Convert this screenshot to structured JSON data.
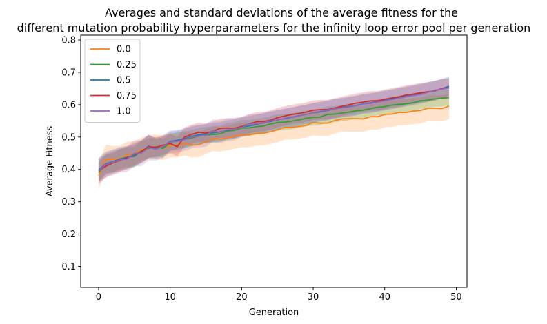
{
  "chart_data": {
    "type": "line",
    "title_line1": "Averages and standard deviations of the average fitness for the",
    "title_line2": "different mutation probability hyperparameters for the infinity loop error pool per generation",
    "xlabel": "Generation",
    "ylabel": "Average Fitness",
    "xlim": [
      -2.5,
      51.5
    ],
    "ylim": [
      0.035,
      0.815
    ],
    "xticks": [
      0,
      10,
      20,
      30,
      40,
      50
    ],
    "yticks": [
      0.1,
      0.2,
      0.3,
      0.4,
      0.5,
      0.6,
      0.7,
      0.8
    ],
    "xtick_labels": [
      "0",
      "10",
      "20",
      "30",
      "40",
      "50"
    ],
    "ytick_labels": [
      "0.1",
      "0.2",
      "0.3",
      "0.4",
      "0.5",
      "0.6",
      "0.7",
      "0.8"
    ],
    "grid": false,
    "legend_position": "top-left",
    "x": [
      0,
      1,
      2,
      3,
      4,
      5,
      6,
      7,
      8,
      9,
      10,
      11,
      12,
      13,
      14,
      15,
      16,
      17,
      18,
      19,
      20,
      21,
      22,
      23,
      24,
      25,
      26,
      27,
      28,
      29,
      30,
      31,
      32,
      33,
      34,
      35,
      36,
      37,
      38,
      39,
      40,
      41,
      42,
      43,
      44,
      45,
      46,
      47,
      48,
      49
    ],
    "series": [
      {
        "name": "0.0",
        "color": "#ff7f0e",
        "mean": [
          0.38,
          0.432,
          0.432,
          0.433,
          0.445,
          0.447,
          0.46,
          0.469,
          0.469,
          0.467,
          0.475,
          0.475,
          0.481,
          0.475,
          0.476,
          0.485,
          0.495,
          0.493,
          0.497,
          0.502,
          0.506,
          0.507,
          0.511,
          0.512,
          0.516,
          0.522,
          0.53,
          0.53,
          0.533,
          0.536,
          0.545,
          0.543,
          0.543,
          0.551,
          0.556,
          0.557,
          0.557,
          0.556,
          0.563,
          0.563,
          0.57,
          0.571,
          0.576,
          0.576,
          0.58,
          0.582,
          0.589,
          0.589,
          0.588,
          0.596
        ],
        "std": [
          0.04,
          0.045,
          0.04,
          0.04,
          0.04,
          0.04,
          0.038,
          0.038,
          0.038,
          0.038,
          0.038,
          0.038,
          0.038,
          0.038,
          0.038,
          0.038,
          0.038,
          0.038,
          0.038,
          0.038,
          0.038,
          0.038,
          0.038,
          0.038,
          0.038,
          0.038,
          0.038,
          0.038,
          0.038,
          0.038,
          0.04,
          0.04,
          0.04,
          0.04,
          0.04,
          0.04,
          0.04,
          0.04,
          0.04,
          0.04,
          0.04,
          0.04,
          0.04,
          0.04,
          0.04,
          0.04,
          0.04,
          0.04,
          0.04,
          0.04
        ]
      },
      {
        "name": "0.25",
        "color": "#2ca02c",
        "mean": [
          0.39,
          0.418,
          0.42,
          0.432,
          0.438,
          0.44,
          0.457,
          0.465,
          0.47,
          0.465,
          0.483,
          0.49,
          0.492,
          0.497,
          0.503,
          0.506,
          0.508,
          0.51,
          0.518,
          0.521,
          0.528,
          0.528,
          0.532,
          0.534,
          0.54,
          0.545,
          0.546,
          0.549,
          0.553,
          0.558,
          0.561,
          0.562,
          0.57,
          0.571,
          0.574,
          0.577,
          0.581,
          0.583,
          0.588,
          0.592,
          0.594,
          0.599,
          0.601,
          0.603,
          0.606,
          0.612,
          0.614,
          0.618,
          0.62,
          0.622
        ],
        "std": [
          0.03,
          0.03,
          0.03,
          0.03,
          0.03,
          0.03,
          0.03,
          0.03,
          0.03,
          0.03,
          0.025,
          0.025,
          0.025,
          0.025,
          0.025,
          0.025,
          0.025,
          0.025,
          0.025,
          0.025,
          0.025,
          0.025,
          0.025,
          0.025,
          0.025,
          0.025,
          0.025,
          0.025,
          0.025,
          0.025,
          0.025,
          0.025,
          0.025,
          0.025,
          0.025,
          0.025,
          0.025,
          0.025,
          0.025,
          0.025,
          0.025,
          0.025,
          0.025,
          0.025,
          0.025,
          0.025,
          0.025,
          0.025,
          0.025,
          0.025
        ]
      },
      {
        "name": "0.5",
        "color": "#1f77b4",
        "mean": [
          0.398,
          0.417,
          0.424,
          0.432,
          0.437,
          0.442,
          0.455,
          0.472,
          0.463,
          0.47,
          0.487,
          0.49,
          0.495,
          0.502,
          0.507,
          0.51,
          0.513,
          0.516,
          0.521,
          0.525,
          0.531,
          0.534,
          0.539,
          0.544,
          0.548,
          0.553,
          0.557,
          0.561,
          0.566,
          0.57,
          0.575,
          0.578,
          0.582,
          0.587,
          0.591,
          0.595,
          0.598,
          0.603,
          0.606,
          0.61,
          0.614,
          0.618,
          0.622,
          0.626,
          0.63,
          0.635,
          0.639,
          0.643,
          0.65,
          0.657
        ],
        "std": [
          0.035,
          0.035,
          0.035,
          0.035,
          0.035,
          0.035,
          0.035,
          0.035,
          0.03,
          0.03,
          0.03,
          0.03,
          0.03,
          0.03,
          0.03,
          0.03,
          0.03,
          0.03,
          0.03,
          0.03,
          0.03,
          0.03,
          0.03,
          0.03,
          0.03,
          0.03,
          0.03,
          0.03,
          0.03,
          0.03,
          0.03,
          0.03,
          0.03,
          0.03,
          0.03,
          0.03,
          0.03,
          0.03,
          0.03,
          0.03,
          0.03,
          0.03,
          0.03,
          0.03,
          0.03,
          0.03,
          0.03,
          0.03,
          0.03,
          0.03
        ]
      },
      {
        "name": "0.75",
        "color": "#d62728",
        "mean": [
          0.395,
          0.41,
          0.42,
          0.428,
          0.435,
          0.447,
          0.455,
          0.47,
          0.468,
          0.475,
          0.48,
          0.47,
          0.5,
          0.508,
          0.515,
          0.512,
          0.518,
          0.527,
          0.528,
          0.527,
          0.533,
          0.54,
          0.547,
          0.548,
          0.552,
          0.56,
          0.565,
          0.57,
          0.573,
          0.577,
          0.583,
          0.585,
          0.585,
          0.59,
          0.595,
          0.6,
          0.605,
          0.608,
          0.612,
          0.612,
          0.617,
          0.621,
          0.625,
          0.63,
          0.633,
          0.637,
          0.64,
          0.643,
          0.65,
          0.652
        ],
        "std": [
          0.035,
          0.035,
          0.035,
          0.035,
          0.035,
          0.035,
          0.035,
          0.035,
          0.03,
          0.03,
          0.03,
          0.03,
          0.03,
          0.03,
          0.03,
          0.03,
          0.03,
          0.03,
          0.03,
          0.03,
          0.03,
          0.03,
          0.03,
          0.03,
          0.03,
          0.03,
          0.03,
          0.03,
          0.03,
          0.03,
          0.03,
          0.03,
          0.03,
          0.03,
          0.03,
          0.03,
          0.03,
          0.03,
          0.03,
          0.03,
          0.03,
          0.03,
          0.03,
          0.03,
          0.03,
          0.03,
          0.03,
          0.03,
          0.03,
          0.03
        ]
      },
      {
        "name": "1.0",
        "color": "#9467bd",
        "mean": [
          0.395,
          0.415,
          0.422,
          0.43,
          0.432,
          0.45,
          0.45,
          0.468,
          0.462,
          0.471,
          0.485,
          0.487,
          0.492,
          0.5,
          0.503,
          0.505,
          0.52,
          0.515,
          0.523,
          0.525,
          0.53,
          0.54,
          0.541,
          0.543,
          0.55,
          0.553,
          0.558,
          0.562,
          0.566,
          0.57,
          0.575,
          0.58,
          0.583,
          0.588,
          0.59,
          0.593,
          0.597,
          0.602,
          0.604,
          0.608,
          0.612,
          0.616,
          0.62,
          0.625,
          0.628,
          0.632,
          0.638,
          0.645,
          0.648,
          0.652
        ],
        "std": [
          0.04,
          0.04,
          0.04,
          0.04,
          0.04,
          0.04,
          0.04,
          0.04,
          0.035,
          0.035,
          0.035,
          0.035,
          0.035,
          0.035,
          0.035,
          0.035,
          0.035,
          0.035,
          0.035,
          0.035,
          0.03,
          0.03,
          0.03,
          0.03,
          0.03,
          0.03,
          0.03,
          0.03,
          0.03,
          0.03,
          0.03,
          0.03,
          0.03,
          0.03,
          0.03,
          0.03,
          0.03,
          0.03,
          0.03,
          0.03,
          0.03,
          0.03,
          0.03,
          0.03,
          0.03,
          0.03,
          0.03,
          0.03,
          0.03,
          0.03
        ]
      }
    ]
  }
}
